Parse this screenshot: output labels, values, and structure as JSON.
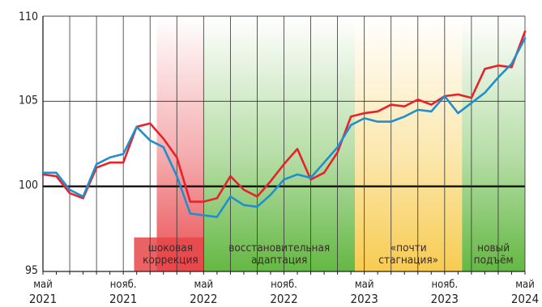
{
  "chart_data": {
    "type": "line",
    "title": "",
    "xlabel": "",
    "ylabel": "",
    "ylim": [
      95,
      110
    ],
    "yticks": [
      95,
      100,
      105,
      110
    ],
    "reference_line": 100,
    "grid": "vertical-and-horizontal",
    "x_count": 37,
    "xticks": [
      {
        "index": 0,
        "month": "май",
        "year": "2021"
      },
      {
        "index": 6,
        "month": "нояб.",
        "year": "2021"
      },
      {
        "index": 12,
        "month": "май",
        "year": "2022"
      },
      {
        "index": 18,
        "month": "нояб.",
        "year": "2022"
      },
      {
        "index": 24,
        "month": "май",
        "year": "2023"
      },
      {
        "index": 30,
        "month": "нояб.",
        "year": "2023"
      },
      {
        "index": 36,
        "month": "май",
        "year": "2024"
      }
    ],
    "phases": [
      {
        "label_lines": [
          "шоковая",
          "коррекция"
        ],
        "start": 8.5,
        "end": 12,
        "color": "#e8464a"
      },
      {
        "label_lines": [
          "восстановительная",
          "адаптация"
        ],
        "start": 12,
        "end": 23.3,
        "color": "#5cb43a"
      },
      {
        "label_lines": [
          "«почти",
          "стагнация»"
        ],
        "start": 23.3,
        "end": 31.3,
        "color": "#f7c948"
      },
      {
        "label_lines": [
          "новый",
          "подъём"
        ],
        "start": 31.3,
        "end": 36,
        "color": "#5cb43a"
      }
    ],
    "series": [
      {
        "color": "#e8222a",
        "values": [
          100.7,
          100.6,
          99.6,
          99.3,
          101.1,
          101.4,
          101.4,
          103.5,
          103.7,
          102.8,
          101.7,
          99.1,
          99.1,
          99.3,
          100.6,
          99.8,
          99.4,
          100.3,
          101.3,
          102.2,
          100.4,
          100.8,
          102.0,
          104.1,
          104.3,
          104.4,
          104.8,
          104.7,
          105.1,
          104.8,
          105.3,
          105.4,
          105.2,
          106.9,
          107.1,
          107.0,
          109.1
        ]
      },
      {
        "color": "#1f8fce",
        "values": [
          100.8,
          100.8,
          99.8,
          99.4,
          101.3,
          101.7,
          101.9,
          103.5,
          102.7,
          102.3,
          100.6,
          98.4,
          98.3,
          98.2,
          99.4,
          98.9,
          98.8,
          99.5,
          100.4,
          100.7,
          100.5,
          101.4,
          102.3,
          103.6,
          104.0,
          103.8,
          103.8,
          104.1,
          104.5,
          104.4,
          105.3,
          104.3,
          104.9,
          105.5,
          106.4,
          107.2,
          108.7
        ]
      }
    ]
  }
}
